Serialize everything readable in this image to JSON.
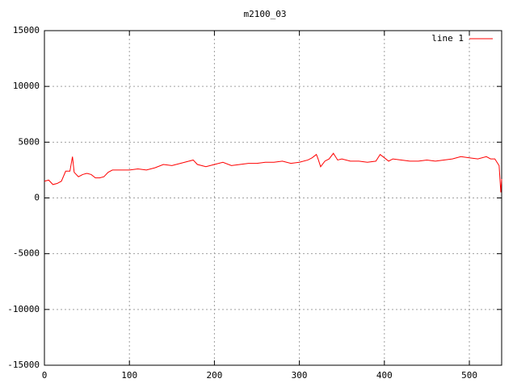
{
  "chart_data": {
    "type": "line",
    "title": "m2100_03",
    "x": [
      0,
      5,
      10,
      15,
      20,
      25,
      30,
      33,
      35,
      40,
      45,
      50,
      55,
      60,
      65,
      70,
      75,
      80,
      90,
      100,
      110,
      120,
      130,
      140,
      150,
      160,
      170,
      175,
      180,
      190,
      200,
      210,
      220,
      230,
      240,
      250,
      260,
      270,
      280,
      290,
      300,
      310,
      315,
      320,
      322,
      325,
      330,
      335,
      340,
      345,
      350,
      360,
      370,
      380,
      390,
      395,
      400,
      405,
      410,
      420,
      430,
      440,
      450,
      460,
      470,
      480,
      490,
      500,
      510,
      520,
      525,
      530,
      535,
      537,
      538
    ],
    "series": [
      {
        "name": "line 1",
        "color": "#ff0000",
        "values": [
          1500,
          1600,
          1200,
          1300,
          1500,
          2400,
          2400,
          3700,
          2300,
          1900,
          2100,
          2200,
          2100,
          1800,
          1800,
          1900,
          2300,
          2500,
          2500,
          2500,
          2600,
          2500,
          2700,
          3000,
          2900,
          3100,
          3300,
          3400,
          3000,
          2800,
          3000,
          3200,
          2900,
          3000,
          3100,
          3100,
          3200,
          3200,
          3300,
          3100,
          3200,
          3400,
          3600,
          3900,
          3500,
          2800,
          3300,
          3500,
          4000,
          3400,
          3500,
          3300,
          3300,
          3200,
          3300,
          3900,
          3600,
          3300,
          3500,
          3400,
          3300,
          3300,
          3400,
          3300,
          3400,
          3500,
          3700,
          3600,
          3500,
          3700,
          3500,
          3500,
          2900,
          500,
          1700
        ]
      }
    ],
    "xlim": [
      0,
      538
    ],
    "ylim": [
      -15000,
      15000
    ],
    "xticks": [
      0,
      100,
      200,
      300,
      400,
      500
    ],
    "yticks": [
      -15000,
      -10000,
      -5000,
      0,
      5000,
      10000,
      15000
    ],
    "grid": true,
    "legend": "top-right"
  }
}
